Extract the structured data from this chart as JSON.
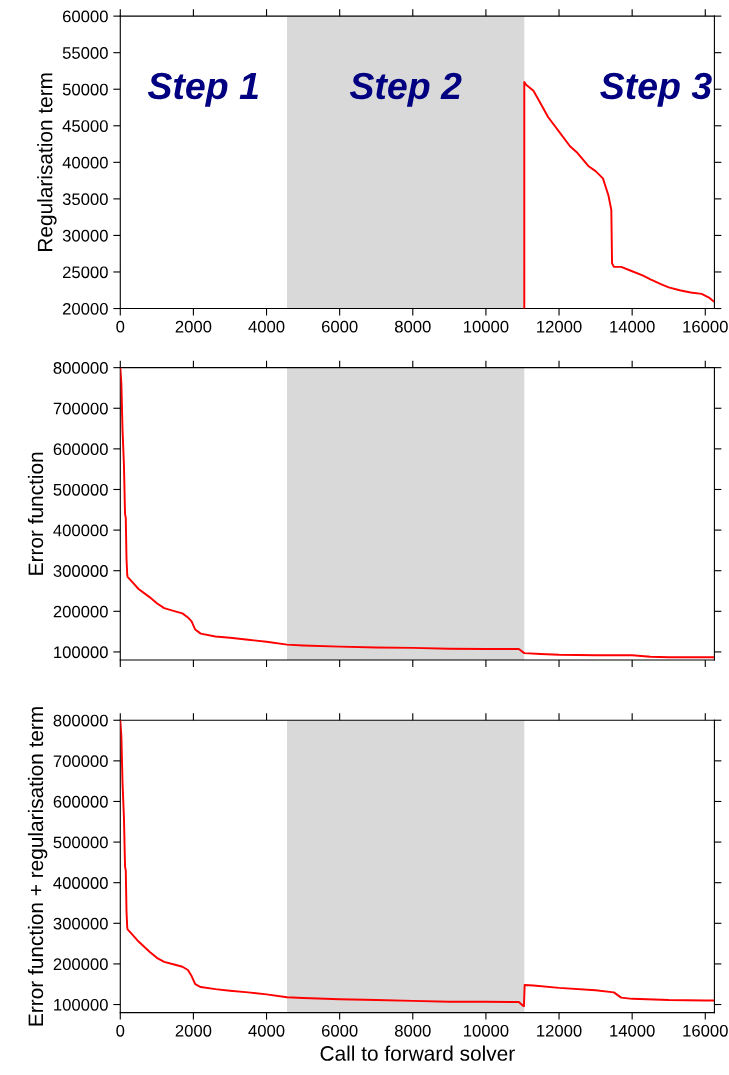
{
  "chart_data": [
    {
      "type": "line",
      "ylabel": "Regularisation term",
      "annotations": [
        "Step 1",
        "Step 2",
        "Step 3"
      ],
      "x": [
        11050,
        11050,
        11100,
        11300,
        11500,
        11700,
        12000,
        12300,
        12500,
        12800,
        13000,
        13200,
        13350,
        13430,
        13450,
        13500,
        13700,
        14000,
        14300,
        14500,
        14800,
        15000,
        15300,
        15600,
        15900,
        16100,
        16220
      ],
      "series": [
        {
          "color": "#ff0000",
          "values": [
            20000,
            51000,
            50600,
            49800,
            48000,
            46200,
            44200,
            42200,
            41300,
            39500,
            38800,
            37800,
            35500,
            33500,
            26200,
            25700,
            25700,
            25100,
            24500,
            24000,
            23300,
            22900,
            22500,
            22200,
            22000,
            21500,
            21000
          ]
        }
      ],
      "xlim": [
        0,
        16250
      ],
      "ylim": [
        20000,
        60000
      ],
      "xticks": [
        0,
        2000,
        4000,
        6000,
        8000,
        10000,
        12000,
        14000,
        16000
      ],
      "yticks": [
        20000,
        25000,
        30000,
        35000,
        40000,
        45000,
        50000,
        55000,
        60000
      ],
      "bands": [
        {
          "axis": "x",
          "from": 4560,
          "to": 11050,
          "color": "#d9d9d9"
        }
      ],
      "grid": false
    },
    {
      "type": "line",
      "ylabel": "Error function",
      "tick_labels": "y",
      "x": [
        0,
        30,
        60,
        100,
        130,
        150,
        170,
        190,
        200,
        300,
        500,
        800,
        1000,
        1200,
        1500,
        1700,
        1850,
        1950,
        2050,
        2200,
        2600,
        3000,
        3500,
        4000,
        4560,
        5000,
        6000,
        7000,
        8000,
        9000,
        10000,
        10900,
        11050,
        11500,
        12000,
        13000,
        14000,
        14500,
        15000,
        16000,
        16220
      ],
      "series": [
        {
          "color": "#ff0000",
          "values": [
            800000,
            760000,
            650000,
            560000,
            440000,
            430000,
            330000,
            290000,
            285000,
            275000,
            255000,
            235000,
            220000,
            208000,
            200000,
            195000,
            185000,
            175000,
            155000,
            145000,
            138000,
            135000,
            130000,
            125000,
            118000,
            116000,
            113000,
            111000,
            110000,
            108000,
            107000,
            107000,
            97000,
            95000,
            93000,
            92000,
            92000,
            88000,
            87000,
            87000,
            87000
          ]
        }
      ],
      "xlim": [
        0,
        16250
      ],
      "ylim": [
        80000,
        800000
      ],
      "xticks": [
        0,
        2000,
        4000,
        6000,
        8000,
        10000,
        12000,
        14000,
        16000
      ],
      "yticks": [
        100000,
        200000,
        300000,
        400000,
        500000,
        600000,
        700000,
        800000
      ],
      "bands": [
        {
          "axis": "x",
          "from": 4560,
          "to": 11050,
          "color": "#d9d9d9"
        }
      ],
      "grid": false
    },
    {
      "type": "line",
      "ylabel": "Error function + regularisation term",
      "xlabel": "Call to forward solver",
      "x": [
        0,
        30,
        60,
        100,
        130,
        150,
        170,
        190,
        200,
        300,
        500,
        800,
        1000,
        1200,
        1500,
        1700,
        1850,
        1950,
        2050,
        2200,
        2600,
        3000,
        3500,
        4000,
        4560,
        5000,
        6000,
        7000,
        8000,
        9000,
        10000,
        10900,
        11000,
        11040,
        11060,
        11300,
        12000,
        13000,
        13500,
        13700,
        14000,
        15000,
        16000,
        16220
      ],
      "series": [
        {
          "color": "#ff0000",
          "values": [
            800000,
            760000,
            650000,
            560000,
            440000,
            430000,
            330000,
            290000,
            285000,
            275000,
            255000,
            230000,
            215000,
            205000,
            198000,
            193000,
            185000,
            170000,
            150000,
            143000,
            138000,
            134000,
            130000,
            125000,
            118000,
            116000,
            113000,
            111000,
            109000,
            107000,
            107000,
            106000,
            98000,
            96000,
            148000,
            147000,
            141000,
            135000,
            130000,
            117000,
            114000,
            111000,
            110000,
            110000
          ]
        }
      ],
      "xlim": [
        0,
        16250
      ],
      "ylim": [
        80000,
        800000
      ],
      "xticks": [
        0,
        2000,
        4000,
        6000,
        8000,
        10000,
        12000,
        14000,
        16000
      ],
      "yticks": [
        100000,
        200000,
        300000,
        400000,
        500000,
        600000,
        700000,
        800000
      ],
      "bands": [
        {
          "axis": "x",
          "from": 4560,
          "to": 11050,
          "color": "#d9d9d9"
        }
      ],
      "grid": false
    }
  ]
}
